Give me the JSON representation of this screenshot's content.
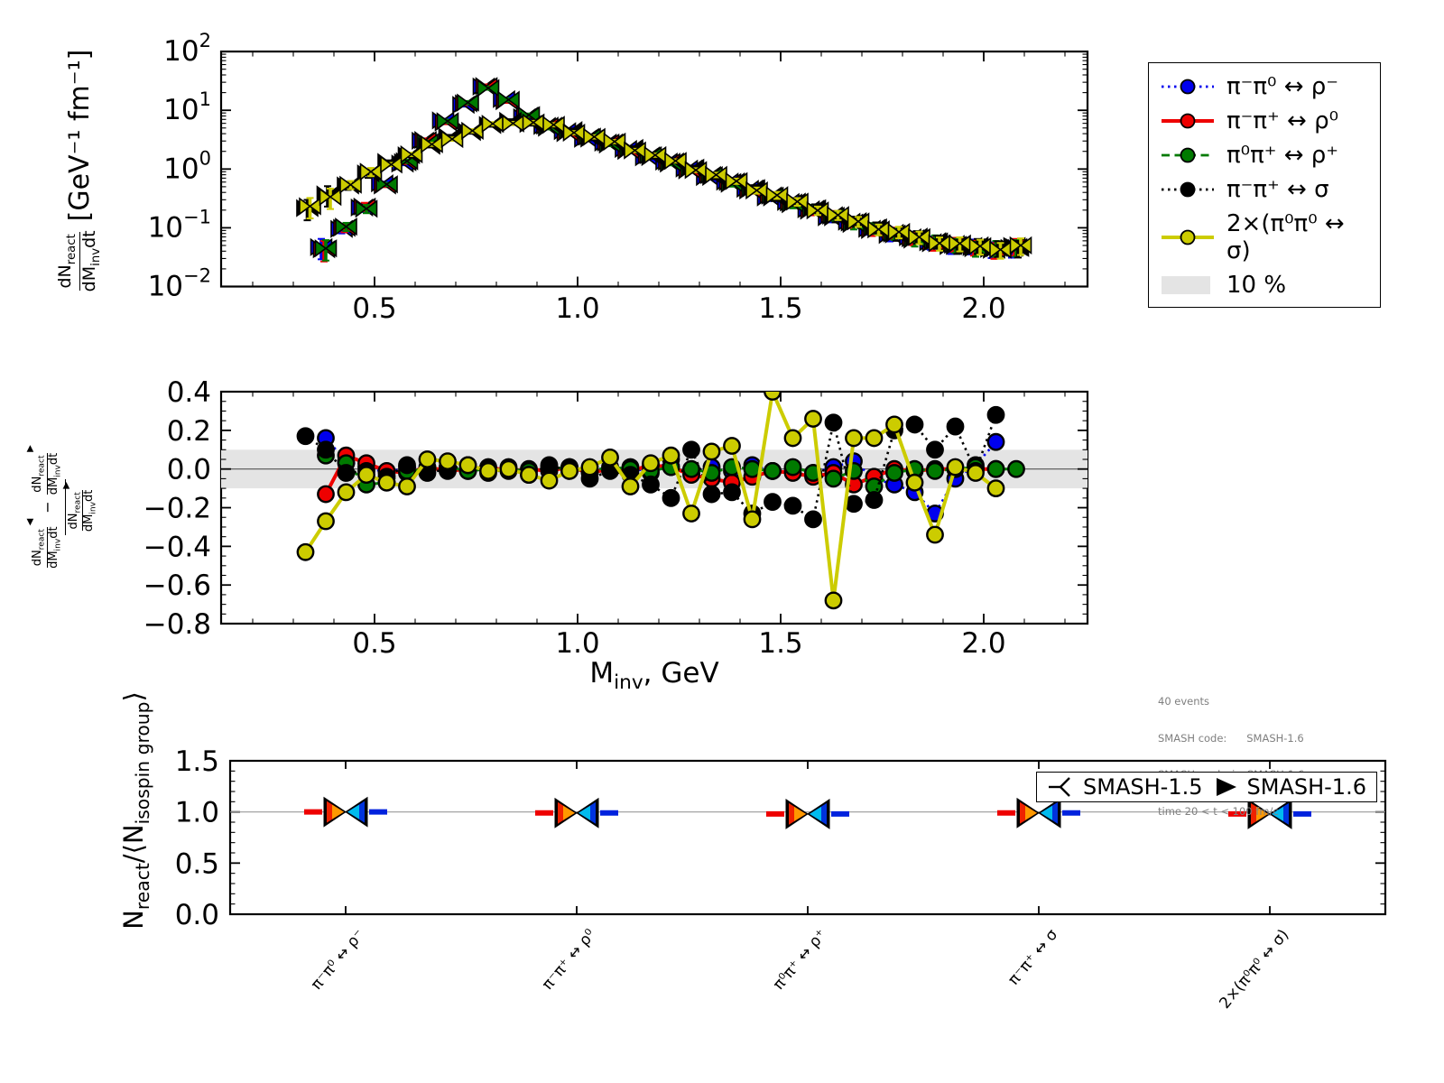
{
  "axis": {
    "frac": {
      "dn": "dN",
      "dn_sub": "react",
      "dm": "dM",
      "dm_sub": "inv",
      "dt": "dt"
    },
    "top_units": "[GeV⁻¹ fm⁻¹]",
    "marker_left": "◀",
    "marker_right": "▶",
    "minus": "−",
    "xlabel": {
      "main": "M",
      "sub": "inv",
      "rest": ", GeV"
    },
    "bottom_ylabel": {
      "n": "N",
      "n_sub": "react",
      "mid": "/⟨N",
      "iso_sub": "isospin group",
      "end": "⟩"
    }
  },
  "top_panel": {
    "ytick_exps": [
      "2",
      "1",
      "0",
      "−1",
      "−2"
    ],
    "yticks": [
      2,
      1,
      0,
      -1,
      -2
    ],
    "xticks": [
      0.5,
      1.0,
      1.5,
      2.0
    ],
    "xtick_labels": [
      "0.5",
      "1.0",
      "1.5",
      "2.0"
    ]
  },
  "middle_panel": {
    "yticks": [
      0.4,
      0.2,
      0.0,
      -0.2,
      -0.4,
      -0.6,
      -0.8
    ],
    "ytick_labels": [
      "0.4",
      "0.2",
      "0.0",
      "−0.2",
      "−0.4",
      "−0.6",
      "−0.8"
    ],
    "band": 0.1
  },
  "legend": {
    "items": [
      {
        "label": "π⁻π⁰ ↔ ρ⁻",
        "color": "#0000ee",
        "dash": "dotted",
        "marker": "circle"
      },
      {
        "label": "π⁻π⁺ ↔ ρ⁰",
        "color": "#ee0000",
        "dash": "solid",
        "marker": "circle"
      },
      {
        "label": "π⁰π⁺ ↔ ρ⁺",
        "color": "#007a00",
        "dash": "dashed",
        "marker": "circle"
      },
      {
        "label": "π⁻π⁺ ↔ σ",
        "color": "#000000",
        "dash": "dotted",
        "marker": "circle"
      },
      {
        "label": "2×(π⁰π⁰ ↔ σ)",
        "color": "#cccc00",
        "dash": "solid",
        "marker": "circle"
      },
      {
        "label": "10 %",
        "color": "#e4e4e4",
        "marker": "band"
      }
    ]
  },
  "info": {
    "lines": [
      "40 events",
      "SMASH code:      SMASH-1.6",
      "SMASH analysis: SMASH-1.6ana",
      "time 20 < t < 100 fm/c"
    ]
  },
  "bottom_legend": {
    "items": [
      {
        "label": "SMASH-1.5",
        "marker": "tri-lines"
      },
      {
        "label": "SMASH-1.6",
        "marker": "triangle-right"
      }
    ]
  },
  "bottom_panel": {
    "yticks": [
      0.0,
      0.5,
      1.0,
      1.5
    ],
    "ytick_labels": [
      "0.0",
      "0.5",
      "1.0",
      "1.5"
    ]
  },
  "chart_data": [
    {
      "type": "line",
      "panel": "top",
      "yscale": "log",
      "ylabel": "dN_react/dM_inv dt [GeV^-1 fm^-1]",
      "xlim": [
        0.12,
        2.26
      ],
      "ylim": [
        0.01,
        100
      ],
      "xticks": [
        0.5,
        1.0,
        1.5,
        2.0
      ],
      "m_grid": [
        0.33,
        0.38,
        0.43,
        0.48,
        0.53,
        0.58,
        0.63,
        0.68,
        0.73,
        0.78,
        0.83,
        0.88,
        0.93,
        0.98,
        1.03,
        1.08,
        1.13,
        1.18,
        1.23,
        1.28,
        1.33,
        1.38,
        1.43,
        1.48,
        1.53,
        1.58,
        1.63,
        1.68,
        1.73,
        1.78,
        1.83,
        1.88,
        1.93,
        1.98,
        2.03,
        2.08
      ],
      "group_values": {
        "rho": [
          0.045,
          0.1,
          0.22,
          0.55,
          1.3,
          3.0,
          6.5,
          13,
          25,
          15,
          8.0,
          5.3,
          4.3,
          3.45,
          2.75,
          2.15,
          1.67,
          1.3,
          1.0,
          0.77,
          0.59,
          0.455,
          0.345,
          0.265,
          0.205,
          0.158,
          0.122,
          0.096,
          0.079,
          0.066,
          0.057,
          0.051,
          0.047,
          0.044,
          0.047
        ],
        "sigma": [
          0.22,
          0.35,
          0.55,
          0.85,
          1.25,
          1.8,
          2.5,
          3.4,
          4.5,
          5.6,
          6.3,
          6.2,
          5.4,
          4.4,
          3.5,
          2.8,
          2.2,
          1.7,
          1.32,
          1.02,
          0.78,
          0.6,
          0.46,
          0.35,
          0.27,
          0.21,
          0.16,
          0.125,
          0.1,
          0.082,
          0.068,
          0.058,
          0.052,
          0.048,
          0.045,
          0.048
        ]
      },
      "series": [
        {
          "name": "π⁻π⁰ ↔ ρ⁻",
          "color": "#0000ee",
          "linestyle": "dotted",
          "group": "rho",
          "i0": 1
        },
        {
          "name": "π⁻π⁺ ↔ ρ⁰",
          "color": "#ee0000",
          "linestyle": "solid",
          "group": "rho",
          "i0": 1
        },
        {
          "name": "π⁰π⁺ ↔ ρ⁺",
          "color": "#007a00",
          "linestyle": "dashed",
          "group": "rho",
          "i0": 1
        },
        {
          "name": "π⁻π⁺ ↔ σ",
          "color": "#000000",
          "linestyle": "dotted",
          "group": "sigma",
          "i0": 0
        },
        {
          "name": "2×(π⁰π⁰ ↔ σ)",
          "color": "#cccc00",
          "linestyle": "solid",
          "group": "sigma",
          "i0": 0
        }
      ]
    },
    {
      "type": "line",
      "panel": "middle",
      "ylabel": "(dN^1.5 - dN^1.6)/dN^1.6",
      "xlabel": "M_inv, GeV",
      "ylim": [
        -0.8,
        0.4
      ],
      "band": 0.1,
      "series": [
        {
          "name": "π⁻π⁰ ↔ ρ⁻",
          "color": "#0000ee",
          "linestyle": "dotted",
          "i0": 1,
          "y": [
            0.16,
            0.04,
            0.01,
            -0.02,
            0.01,
            0.0,
            0.01,
            -0.01,
            0.0,
            0.01,
            -0.01,
            0.0,
            0.01,
            -0.01,
            0.0,
            0.01,
            -0.02,
            0.05,
            -0.02,
            0.01,
            -0.01,
            0.02,
            -0.01,
            0.0,
            -0.02,
            0.01,
            0.04,
            -0.05,
            -0.08,
            -0.12,
            -0.23,
            -0.05,
            0.02,
            0.14
          ]
        },
        {
          "name": "π⁻π⁺ ↔ ρ⁰",
          "color": "#ee0000",
          "linestyle": "solid",
          "i0": 1,
          "y": [
            -0.13,
            0.07,
            0.03,
            -0.01,
            -0.02,
            0.01,
            -0.01,
            0.0,
            0.01,
            -0.01,
            0.0,
            -0.01,
            0.01,
            -0.02,
            0.0,
            -0.01,
            0.02,
            0.01,
            -0.03,
            -0.05,
            -0.07,
            -0.04,
            -0.01,
            -0.02,
            -0.04,
            -0.02,
            -0.08,
            -0.04,
            0.0,
            -0.01,
            0.0,
            0.0,
            0.0,
            0.0
          ]
        },
        {
          "name": "π⁰π⁺ ↔ ρ⁺",
          "color": "#007a00",
          "linestyle": "dashed",
          "i0": 1,
          "y": [
            0.07,
            0.03,
            -0.08,
            -0.07,
            -0.01,
            0.0,
            0.01,
            -0.01,
            0.0,
            0.0,
            -0.01,
            0.01,
            0.0,
            -0.01,
            0.01,
            0.0,
            -0.01,
            0.01,
            0.0,
            -0.02,
            0.01,
            0.0,
            -0.01,
            0.01,
            -0.02,
            -0.05,
            -0.01,
            -0.09,
            -0.02,
            0.0,
            -0.01,
            0.0,
            0.01,
            0.0,
            0.0
          ]
        },
        {
          "name": "π⁻π⁺ ↔ σ",
          "color": "#000000",
          "linestyle": "dotted",
          "i0": 0,
          "y": [
            0.17,
            0.1,
            -0.02,
            -0.01,
            -0.04,
            0.02,
            -0.02,
            0.0,
            0.02,
            -0.02,
            0.0,
            -0.03,
            0.02,
            -0.01,
            -0.05,
            -0.01,
            -0.03,
            -0.08,
            -0.15,
            0.1,
            -0.13,
            -0.12,
            -0.23,
            -0.17,
            -0.19,
            -0.26,
            0.24,
            -0.18,
            -0.16,
            0.2,
            0.23,
            0.1,
            0.22,
            -0.01,
            0.28
          ]
        },
        {
          "name": "2×(π⁰π⁰ ↔ σ)",
          "color": "#cccc00",
          "linestyle": "solid",
          "i0": 0,
          "y": [
            -0.43,
            -0.27,
            -0.12,
            -0.03,
            -0.07,
            -0.09,
            0.05,
            0.04,
            0.02,
            -0.01,
            0.0,
            -0.03,
            -0.06,
            -0.01,
            0.01,
            0.06,
            -0.09,
            0.03,
            0.07,
            -0.23,
            0.09,
            0.12,
            -0.26,
            0.4,
            0.16,
            0.26,
            -0.68,
            0.16,
            0.16,
            0.23,
            -0.07,
            -0.34,
            0.01,
            -0.02,
            -0.1
          ]
        }
      ]
    },
    {
      "type": "scatter",
      "panel": "bottom",
      "ylabel": "N_react/<N_isospin group>",
      "ylim": [
        0,
        1.5
      ],
      "categories": [
        "π⁻π⁰ ↔ ρ⁻",
        "π⁻π⁺ ↔ ρ⁰",
        "π⁰π⁺ ↔ ρ⁺",
        "π⁻π⁺ ↔ σ",
        "2×(π⁰π⁰ ↔ σ)"
      ],
      "values": [
        1.0,
        0.99,
        0.98,
        0.99,
        0.98
      ],
      "legend": [
        "SMASH-1.5",
        "SMASH-1.6"
      ]
    }
  ]
}
